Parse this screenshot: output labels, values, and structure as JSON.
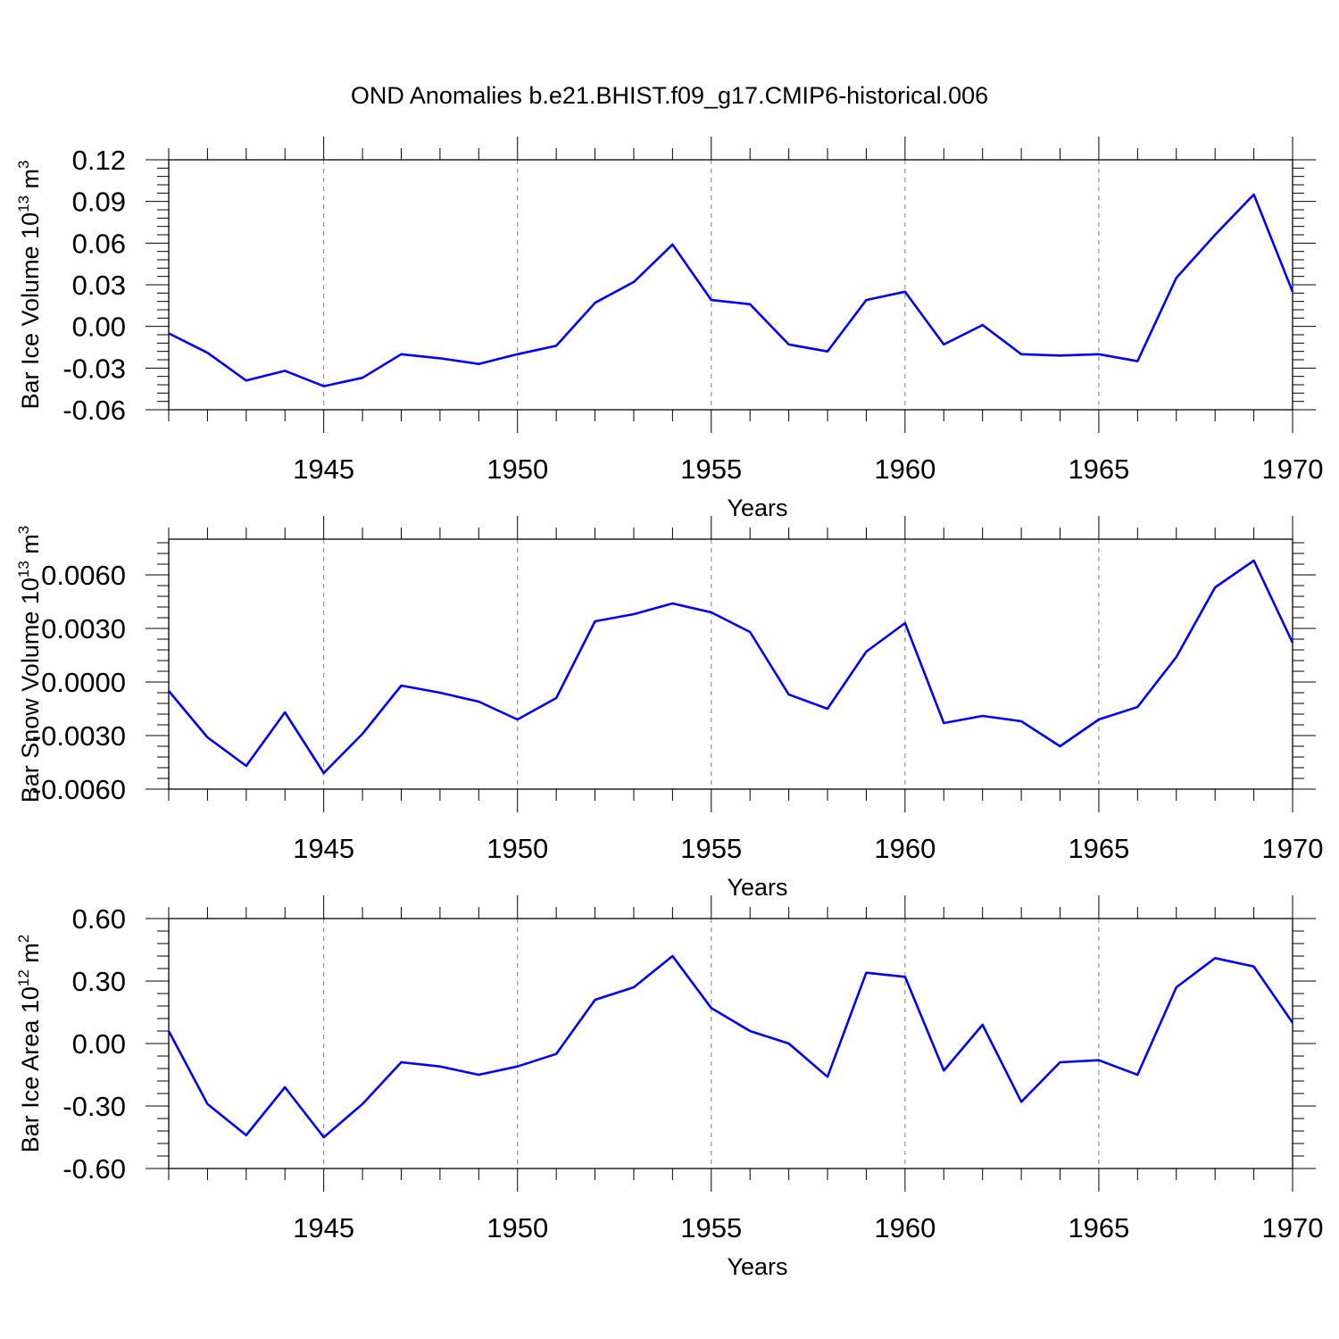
{
  "title": "OND Anomalies b.e21.BHIST.f09_g17.CMIP6-historical.006",
  "colors": {
    "line": "#0000ff",
    "axis": "#000000",
    "grid": "#808080",
    "background": "#ffffff"
  },
  "chart_data": [
    {
      "type": "line",
      "ylabel": "Bar Ice Volume 10",
      "ylabel_exponent": "13",
      "ylabel_unit": "m",
      "ylabel_unit_exponent": "3",
      "xlabel": "Years",
      "xlim": [
        1941,
        1970
      ],
      "ylim": [
        -0.06,
        0.12
      ],
      "yticks": [
        "0.12",
        "0.09",
        "0.06",
        "0.03",
        "0.00",
        "-0.03",
        "-0.06"
      ],
      "ytick_values": [
        0.12,
        0.09,
        0.06,
        0.03,
        0.0,
        -0.03,
        -0.06
      ],
      "xticks": [
        "1945",
        "1950",
        "1955",
        "1960",
        "1965",
        "1970"
      ],
      "xtick_values": [
        1945,
        1950,
        1955,
        1960,
        1965,
        1970
      ],
      "grid": "dashed vertical lines at major x ticks",
      "x": [
        1941,
        1942,
        1943,
        1944,
        1945,
        1946,
        1947,
        1948,
        1949,
        1950,
        1951,
        1952,
        1953,
        1954,
        1955,
        1956,
        1957,
        1958,
        1959,
        1960,
        1961,
        1962,
        1963,
        1964,
        1965,
        1966,
        1967,
        1968,
        1969,
        1970
      ],
      "y": [
        -0.005,
        -0.019,
        -0.039,
        -0.032,
        -0.043,
        -0.037,
        -0.02,
        -0.023,
        -0.027,
        -0.02,
        -0.014,
        0.017,
        0.032,
        0.059,
        0.019,
        0.016,
        -0.013,
        -0.018,
        0.019,
        0.025,
        -0.013,
        0.001,
        -0.02,
        -0.021,
        -0.02,
        -0.025,
        0.035,
        0.066,
        0.095,
        0.025
      ]
    },
    {
      "type": "line",
      "ylabel": "Bar Snow Volume 10",
      "ylabel_exponent": "13",
      "ylabel_unit": "m",
      "ylabel_unit_exponent": "3",
      "xlabel": "Years",
      "xlim": [
        1941,
        1970
      ],
      "ylim": [
        -0.006,
        0.008
      ],
      "yticks": [
        "0.0060",
        "0.0030",
        "0.0000",
        "-0.0030",
        "-0.0060"
      ],
      "ytick_values": [
        0.006,
        0.003,
        0.0,
        -0.003,
        -0.006
      ],
      "xticks": [
        "1945",
        "1950",
        "1955",
        "1960",
        "1965",
        "1970"
      ],
      "xtick_values": [
        1945,
        1950,
        1955,
        1960,
        1965,
        1970
      ],
      "grid": "dashed vertical lines at major x ticks",
      "x": [
        1941,
        1942,
        1943,
        1944,
        1945,
        1946,
        1947,
        1948,
        1949,
        1950,
        1951,
        1952,
        1953,
        1954,
        1955,
        1956,
        1957,
        1958,
        1959,
        1960,
        1961,
        1962,
        1963,
        1964,
        1965,
        1966,
        1967,
        1968,
        1969,
        1970
      ],
      "y": [
        -0.0005,
        -0.0031,
        -0.0047,
        -0.0017,
        -0.0051,
        -0.0029,
        -0.0002,
        -0.0006,
        -0.0011,
        -0.0021,
        -0.0009,
        0.0034,
        0.0038,
        0.0044,
        0.0039,
        0.0028,
        -0.0007,
        -0.0015,
        0.0017,
        0.0033,
        -0.0023,
        -0.0019,
        -0.0022,
        -0.0036,
        -0.0021,
        -0.0014,
        0.0014,
        0.0053,
        0.0068,
        0.0022
      ]
    },
    {
      "type": "line",
      "ylabel": "Bar Ice Area 10",
      "ylabel_exponent": "12",
      "ylabel_unit": "m",
      "ylabel_unit_exponent": "2",
      "xlabel": "Years",
      "xlim": [
        1941,
        1970
      ],
      "ylim": [
        -0.6,
        0.6
      ],
      "yticks": [
        "0.60",
        "0.30",
        "0.00",
        "-0.30",
        "-0.60"
      ],
      "ytick_values": [
        0.6,
        0.3,
        0.0,
        -0.3,
        -0.6
      ],
      "xticks": [
        "1945",
        "1950",
        "1955",
        "1960",
        "1965",
        "1970"
      ],
      "xtick_values": [
        1945,
        1950,
        1955,
        1960,
        1965,
        1970
      ],
      "grid": "dashed vertical lines at major x ticks",
      "x": [
        1941,
        1942,
        1943,
        1944,
        1945,
        1946,
        1947,
        1948,
        1949,
        1950,
        1951,
        1952,
        1953,
        1954,
        1955,
        1956,
        1957,
        1958,
        1959,
        1960,
        1961,
        1962,
        1963,
        1964,
        1965,
        1966,
        1967,
        1968,
        1969,
        1970
      ],
      "y": [
        0.06,
        -0.29,
        -0.44,
        -0.21,
        -0.45,
        -0.29,
        -0.09,
        -0.11,
        -0.15,
        -0.11,
        -0.05,
        0.21,
        0.27,
        0.42,
        0.17,
        0.06,
        0.0,
        -0.16,
        0.34,
        0.32,
        -0.13,
        0.09,
        -0.28,
        -0.09,
        -0.08,
        -0.15,
        0.27,
        0.41,
        0.37,
        0.1
      ]
    }
  ]
}
